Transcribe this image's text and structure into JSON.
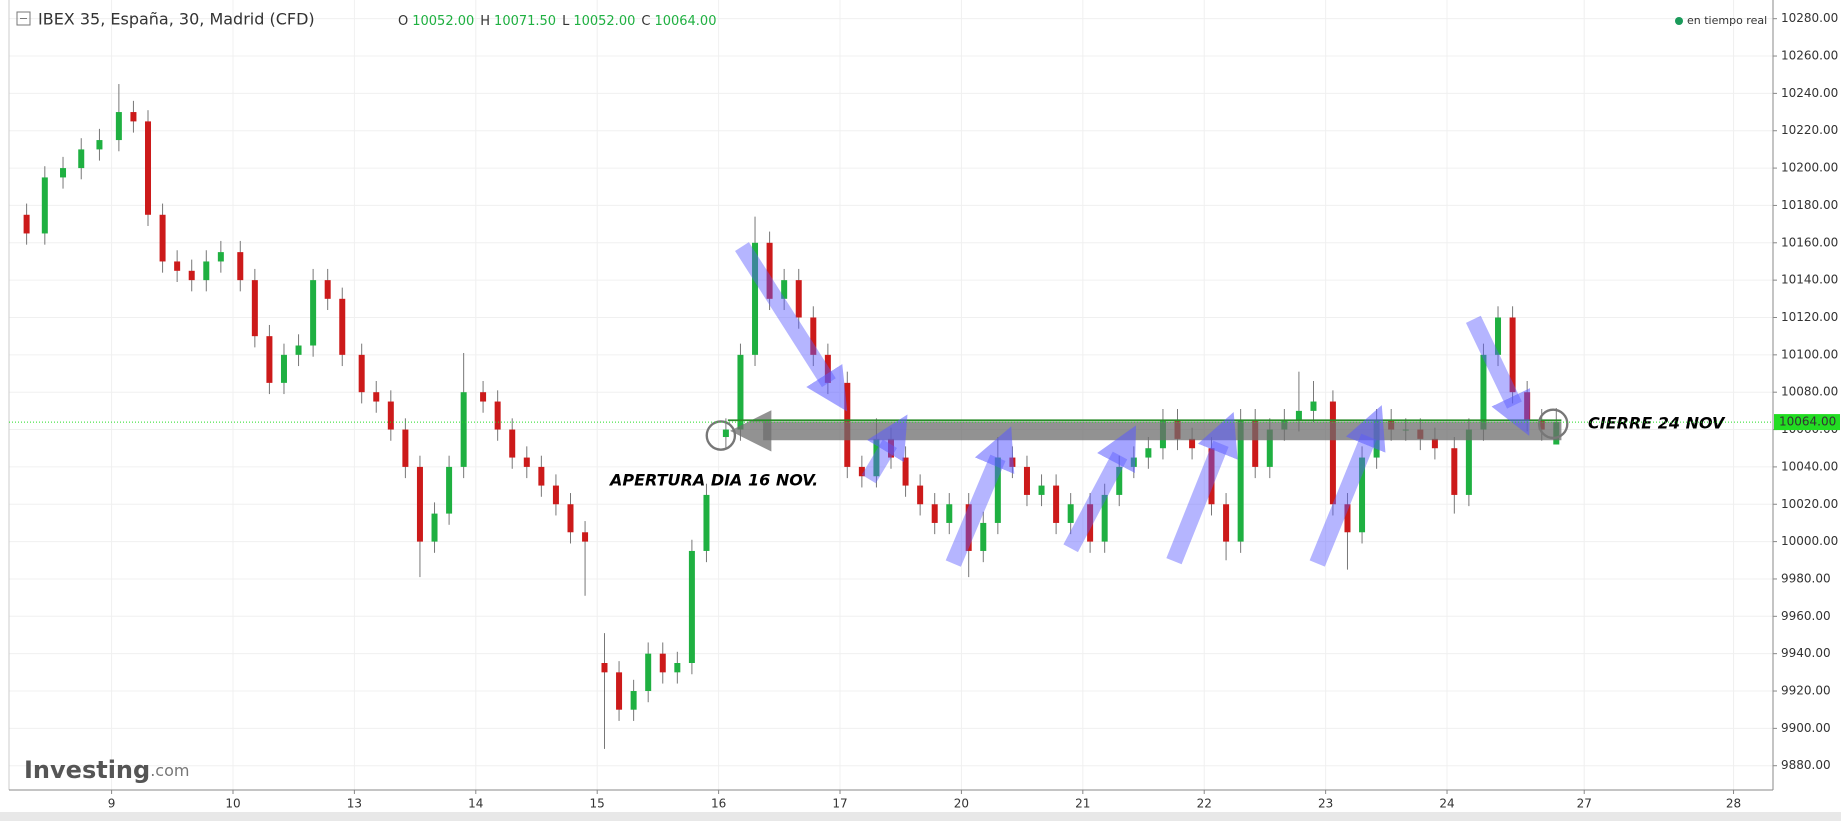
{
  "chart_data": {
    "type": "candlestick",
    "title": "IBEX 35, España, 30, Madrid (CFD)",
    "status": "en tiempo real",
    "ohlc_header": [
      {
        "name": "O",
        "label": "10052.00"
      },
      {
        "name": "H",
        "label": "10071.50"
      },
      {
        "name": "L",
        "label": "10052.00"
      },
      {
        "name": "C",
        "label": "10064.00"
      }
    ],
    "logo": [
      "Investing",
      ".com"
    ],
    "annotations": [
      "APERTURA DIA 16 NOV.",
      "CIERRE 24 NOV"
    ],
    "up_color": "#1fb041",
    "down_color": "#cc1a1a",
    "wick_color": "#777777",
    "price_line": {
      "value": 10064,
      "label": "10064.00",
      "color": "#22dd22"
    },
    "xlim": [
      0.155,
      14.685
    ],
    "ylim": [
      9867,
      10290
    ],
    "grid": true,
    "xticks": [
      {
        "value": 1,
        "label": "9"
      },
      {
        "value": 2,
        "label": "10"
      },
      {
        "value": 3,
        "label": "13"
      },
      {
        "value": 4,
        "label": "14"
      },
      {
        "value": 5,
        "label": "15"
      },
      {
        "value": 6,
        "label": "16"
      },
      {
        "value": 7,
        "label": "17"
      },
      {
        "value": 8,
        "label": "20"
      },
      {
        "value": 9,
        "label": "21"
      },
      {
        "value": 10,
        "label": "22"
      },
      {
        "value": 11,
        "label": "23"
      },
      {
        "value": 12,
        "label": "24"
      },
      {
        "value": 13.13,
        "label": "27"
      },
      {
        "value": 14.36,
        "label": "28"
      }
    ],
    "yticks": [
      {
        "value": 9880,
        "label": "9880.00"
      },
      {
        "value": 9900,
        "label": "9900.00"
      },
      {
        "value": 9920,
        "label": "9920.00"
      },
      {
        "value": 9940,
        "label": "9940.00"
      },
      {
        "value": 9960,
        "label": "9960.00"
      },
      {
        "value": 9980,
        "label": "9980.00"
      },
      {
        "value": 10000,
        "label": "10000.00"
      },
      {
        "value": 10020,
        "label": "10020.00"
      },
      {
        "value": 10040,
        "label": "10040.00"
      },
      {
        "value": 10060,
        "label": "10060.00"
      },
      {
        "value": 10080,
        "label": "10080.00"
      },
      {
        "value": 10100,
        "label": "10100.00"
      },
      {
        "value": 10120,
        "label": "10120.00"
      },
      {
        "value": 10140,
        "label": "10140.00"
      },
      {
        "value": 10160,
        "label": "10160.00"
      },
      {
        "value": 10180,
        "label": "10180.00"
      },
      {
        "value": 10200,
        "label": "10200.00"
      },
      {
        "value": 10220,
        "label": "10220.00"
      },
      {
        "value": 10240,
        "label": "10240.00"
      },
      {
        "value": 10260,
        "label": "10260.00"
      },
      {
        "value": 10280,
        "label": "10280.00"
      }
    ],
    "x": [
      0.3,
      0.45,
      0.6,
      0.75,
      0.9,
      1.06,
      1.18,
      1.3,
      1.42,
      1.54,
      1.66,
      1.78,
      1.9,
      2.06,
      2.18,
      2.3,
      2.42,
      2.54,
      2.66,
      2.78,
      2.9,
      3.06,
      3.18,
      3.3,
      3.42,
      3.54,
      3.66,
      3.78,
      3.9,
      4.06,
      4.18,
      4.3,
      4.42,
      4.54,
      4.66,
      4.78,
      4.9,
      5.06,
      5.18,
      5.3,
      5.42,
      5.54,
      5.66,
      5.78,
      5.9,
      6.06,
      6.18,
      6.3,
      6.42,
      6.54,
      6.66,
      6.78,
      6.9,
      7.06,
      7.18,
      7.3,
      7.42,
      7.54,
      7.66,
      7.78,
      7.9,
      8.06,
      8.18,
      8.3,
      8.42,
      8.54,
      8.66,
      8.78,
      8.9,
      9.06,
      9.18,
      9.3,
      9.42,
      9.54,
      9.66,
      9.78,
      9.9,
      10.06,
      10.18,
      10.3,
      10.42,
      10.54,
      10.66,
      10.78,
      10.9,
      11.06,
      11.18,
      11.3,
      11.42,
      11.54,
      11.66,
      11.78,
      11.9,
      12.06,
      12.18,
      12.3,
      12.42,
      12.54,
      12.66,
      12.78,
      12.9
    ],
    "open": [
      10175,
      10165,
      10195,
      10200,
      10210,
      10215,
      10230,
      10225,
      10175,
      10150,
      10145,
      10140,
      10150,
      10155,
      10140,
      10110,
      10085,
      10100,
      10105,
      10140,
      10130,
      10100,
      10080,
      10075,
      10060,
      10040,
      10000,
      10015,
      10040,
      10080,
      10075,
      10060,
      10045,
      10040,
      10030,
      10020,
      10005,
      9935,
      9930,
      9910,
      9920,
      9940,
      9930,
      9935,
      9995,
      10056,
      10060,
      10100,
      10160,
      10130,
      10140,
      10120,
      10100,
      10085,
      10040,
      10035,
      10055,
      10045,
      10030,
      10020,
      10010,
      10020,
      9995,
      10010,
      10045,
      10040,
      10025,
      10030,
      10010,
      10020,
      10000,
      10025,
      10040,
      10045,
      10050,
      10065,
      10055,
      10050,
      10020,
      10000,
      10065,
      10040,
      10060,
      10065,
      10070,
      10075,
      10020,
      10005,
      10045,
      10065,
      10060,
      10060,
      10055,
      10050,
      10025,
      10060,
      10100,
      10120,
      10080,
      10065,
      10052
    ],
    "high": [
      10181,
      10201,
      10206,
      10216,
      10221,
      10245,
      10236,
      10231,
      10181,
      10156,
      10151,
      10156,
      10161,
      10161,
      10146,
      10116,
      10106,
      10111,
      10146,
      10146,
      10136,
      10106,
      10086,
      10081,
      10066,
      10046,
      10021,
      10046,
      10101,
      10086,
      10081,
      10066,
      10051,
      10046,
      10036,
      10026,
      10011,
      9951,
      9936,
      9926,
      9946,
      9946,
      9941,
      10001,
      10031,
      10066,
      10106,
      10174,
      10166,
      10146,
      10146,
      10126,
      10106,
      10091,
      10046,
      10066,
      10061,
      10051,
      10036,
      10026,
      10026,
      10026,
      10016,
      10056,
      10051,
      10046,
      10036,
      10036,
      10026,
      10026,
      10031,
      10046,
      10051,
      10056,
      10071,
      10071,
      10061,
      10056,
      10026,
      10071,
      10071,
      10066,
      10071,
      10091,
      10086,
      10081,
      10026,
      10051,
      10071,
      10071,
      10066,
      10066,
      10061,
      10056,
      10066,
      10106,
      10126,
      10126,
      10086,
      10071,
      10071.5
    ],
    "low": [
      10159,
      10159,
      10189,
      10194,
      10204,
      10209,
      10219,
      10169,
      10144,
      10139,
      10134,
      10134,
      10144,
      10134,
      10104,
      10079,
      10079,
      10094,
      10099,
      10124,
      10094,
      10074,
      10069,
      10054,
      10034,
      9981,
      9994,
      10009,
      10034,
      10069,
      10054,
      10039,
      10034,
      10024,
      10014,
      9999,
      9971,
      9889,
      9904,
      9904,
      9914,
      9924,
      9924,
      9929,
      9989,
      10050,
      10054,
      10094,
      10124,
      10124,
      10114,
      10094,
      10079,
      10034,
      10029,
      10029,
      10039,
      10024,
      10014,
      10004,
      10004,
      9981,
      9989,
      10004,
      10034,
      10019,
      10019,
      10004,
      10004,
      9994,
      9994,
      10019,
      10034,
      10039,
      10044,
      10049,
      10044,
      10014,
      9990,
      9994,
      10034,
      10034,
      10054,
      10059,
      10064,
      10014,
      9985,
      9999,
      10039,
      10054,
      10054,
      10049,
      10044,
      10015,
      10019,
      10054,
      10094,
      10074,
      10059,
      10054,
      10052
    ],
    "close": [
      10165,
      10195,
      10200,
      10210,
      10215,
      10230,
      10225,
      10175,
      10150,
      10145,
      10140,
      10150,
      10155,
      10140,
      10110,
      10085,
      10100,
      10105,
      10140,
      10130,
      10100,
      10080,
      10075,
      10060,
      10040,
      10000,
      10015,
      10040,
      10080,
      10075,
      10060,
      10045,
      10040,
      10030,
      10020,
      10005,
      10000,
      9930,
      9910,
      9920,
      9940,
      9930,
      9935,
      9995,
      10025,
      10060,
      10100,
      10160,
      10130,
      10140,
      10120,
      10100,
      10085,
      10040,
      10035,
      10055,
      10045,
      10030,
      10020,
      10010,
      10020,
      9995,
      10010,
      10045,
      10040,
      10025,
      10030,
      10010,
      10020,
      10000,
      10025,
      10040,
      10045,
      10050,
      10065,
      10055,
      10050,
      10020,
      10000,
      10065,
      10040,
      10060,
      10065,
      10070,
      10075,
      10020,
      10005,
      10045,
      10065,
      10060,
      10060,
      10055,
      10050,
      10025,
      10060,
      10100,
      10120,
      10080,
      10065,
      10060,
      10064
    ]
  }
}
